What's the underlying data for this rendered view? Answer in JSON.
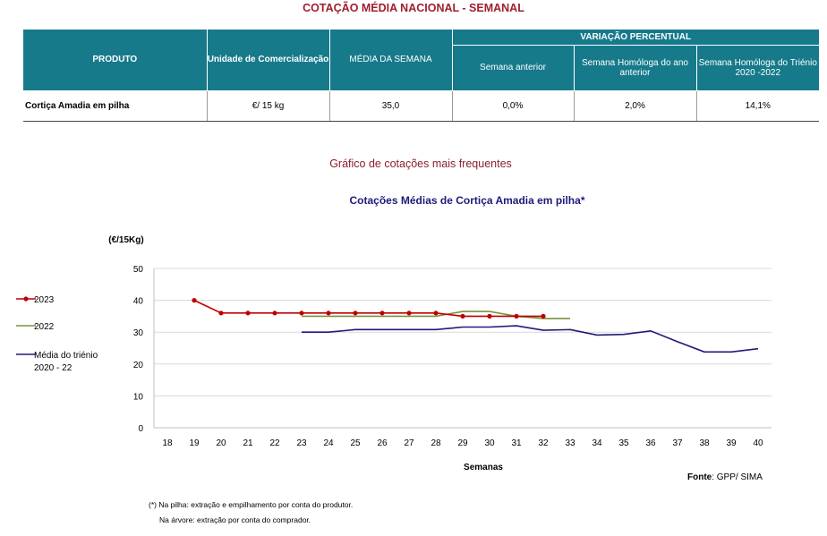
{
  "page_title": "COTAÇÃO MÉDIA NACIONAL - SEMANAL",
  "table": {
    "headers": {
      "produto": "PRODUTO",
      "unidade": "Unidade de Comercialização",
      "media": "MÉDIA DA SEMANA",
      "variacao": "VARIAÇÃO PERCENTUAL",
      "semana_anterior": "Semana anterior",
      "homologa_ano": "Semana Homóloga do ano anterior",
      "homologa_trienio": "Semana Homóloga do Triénio 2020 -2022"
    },
    "header_color": "#167a8b",
    "rows": [
      {
        "produto": "Cortiça Amadia em pilha",
        "unidade": "€/ 15 kg",
        "media": "35,0",
        "semana_anterior": "0,0%",
        "homologa_ano": "2,0%",
        "homologa_trienio": "14,1%"
      }
    ]
  },
  "chart_subtitle": "Gráfico de cotações mais frequentes",
  "chart_data": {
    "type": "line",
    "title": "Cotações Médias de Cortiça Amadia em pilha*",
    "ylabel": "(€/15Kg)",
    "xlabel": "Semanas",
    "x": [
      18,
      19,
      20,
      21,
      22,
      23,
      24,
      25,
      26,
      27,
      28,
      29,
      30,
      31,
      32,
      33,
      34,
      35,
      36,
      37,
      38,
      39,
      40
    ],
    "ylim": [
      0,
      50
    ],
    "yticks": [
      0,
      10,
      20,
      30,
      40,
      50
    ],
    "grid": true,
    "legend_position": "left",
    "series": [
      {
        "name": "2023",
        "color": "#c00000",
        "markers": true,
        "values": [
          null,
          40,
          36,
          36,
          36,
          36,
          36,
          36,
          36,
          36,
          36,
          35,
          35,
          35,
          35,
          null,
          null,
          null,
          null,
          null,
          null,
          null,
          null
        ]
      },
      {
        "name": "2022",
        "color": "#77933c",
        "markers": false,
        "values": [
          null,
          null,
          null,
          null,
          null,
          35,
          35,
          35,
          35,
          35,
          35,
          36.5,
          36.5,
          35,
          34.3,
          34.3,
          null,
          null,
          null,
          null,
          null,
          null,
          null
        ]
      },
      {
        "name": "Média do triénio 2020 - 22",
        "color": "#1f1a7a",
        "markers": false,
        "values": [
          null,
          null,
          null,
          null,
          null,
          30,
          30,
          30.8,
          30.8,
          30.8,
          30.8,
          31.6,
          31.6,
          32,
          30.6,
          30.8,
          29.1,
          29.3,
          30.4,
          27,
          23.8,
          23.8,
          24.8
        ]
      }
    ]
  },
  "source": {
    "label": "Fonte",
    "text": ": GPP/ SIMA"
  },
  "footnotes": [
    "(*) Na pilha: extração e empilhamento por conta do produtor.",
    "Na árvore: extração por conta do comprador."
  ]
}
